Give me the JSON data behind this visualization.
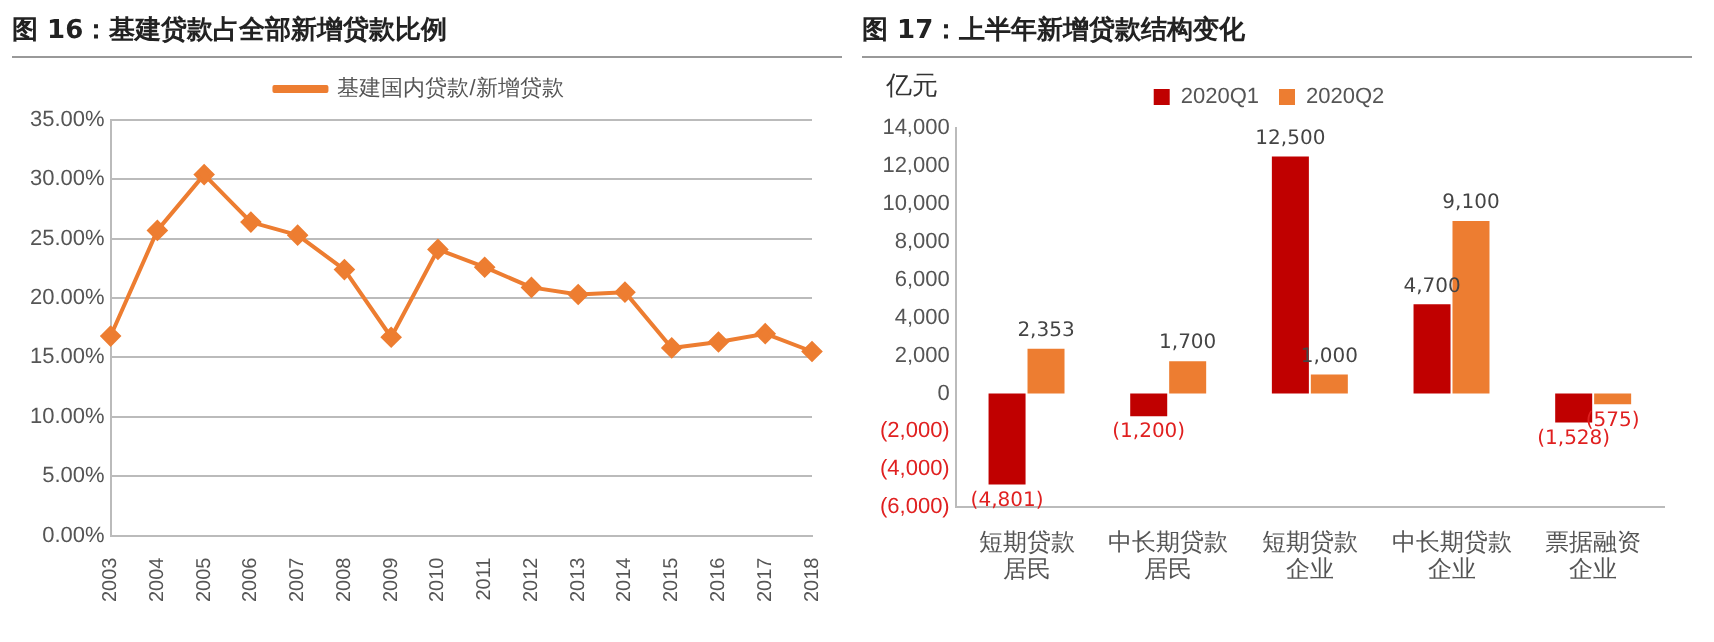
{
  "chart_data": [
    {
      "type": "line",
      "title": "图 16：基建贷款占全部新增贷款比例",
      "categories": [
        "2003",
        "2004",
        "2005",
        "2006",
        "2007",
        "2008",
        "2009",
        "2010",
        "2011",
        "2012",
        "2013",
        "2014",
        "2015",
        "2016",
        "2017",
        "2018"
      ],
      "series": [
        {
          "name": "基建国内贷款/新增贷款",
          "color": "#ed7d31",
          "values": [
            16.8,
            25.7,
            30.4,
            26.4,
            25.3,
            22.4,
            16.7,
            24.1,
            22.6,
            20.9,
            20.3,
            20.5,
            15.8,
            16.3,
            17.0,
            15.5
          ]
        }
      ],
      "ylim": [
        0,
        35
      ],
      "yticks": [
        {
          "value": 0,
          "label": "0.00%"
        },
        {
          "value": 5,
          "label": "5.00%"
        },
        {
          "value": 10,
          "label": "10.00%"
        },
        {
          "value": 15,
          "label": "15.00%"
        },
        {
          "value": 20,
          "label": "20.00%"
        },
        {
          "value": 25,
          "label": "25.00%"
        },
        {
          "value": 30,
          "label": "30.00%"
        },
        {
          "value": 35,
          "label": "35.00%"
        }
      ],
      "grid": "y",
      "legend": "top",
      "marker": "diamond"
    },
    {
      "type": "bar",
      "title": "图 17：上半年新增贷款结构变化",
      "ylabel": "亿元",
      "categories": [
        "短期贷款",
        "中长期贷款",
        "短期贷款",
        "中长期贷款",
        "票据融资"
      ],
      "annotations": [
        "居民",
        "居民",
        "企业",
        "企业",
        "企业"
      ],
      "series": [
        {
          "name": "2020Q1",
          "color": "#c00000",
          "values": [
            -4801,
            -1200,
            12500,
            4700,
            -1528
          ],
          "value_labels": [
            "(4,801)",
            "(1,200)",
            "12,500",
            "4,700",
            "(1,528)"
          ]
        },
        {
          "name": "2020Q2",
          "color": "#ed7d31",
          "values": [
            2353,
            1700,
            1000,
            9100,
            -575
          ],
          "value_labels": [
            "2,353",
            "1,700",
            "1,000",
            "9,100",
            "(575)"
          ]
        }
      ],
      "ylim": [
        -6000,
        14000
      ],
      "yticks": [
        {
          "value": -6000,
          "label": "(6,000)"
        },
        {
          "value": -4000,
          "label": "(4,000)"
        },
        {
          "value": -2000,
          "label": "(2,000)"
        },
        {
          "value": 0,
          "label": "0"
        },
        {
          "value": 2000,
          "label": "2,000"
        },
        {
          "value": 4000,
          "label": "4,000"
        },
        {
          "value": 6000,
          "label": "6,000"
        },
        {
          "value": 8000,
          "label": "8,000"
        },
        {
          "value": 10000,
          "label": "10,000"
        },
        {
          "value": 12000,
          "label": "12,000"
        },
        {
          "value": 14000,
          "label": "14,000"
        }
      ],
      "grid": false,
      "legend": "top"
    }
  ]
}
